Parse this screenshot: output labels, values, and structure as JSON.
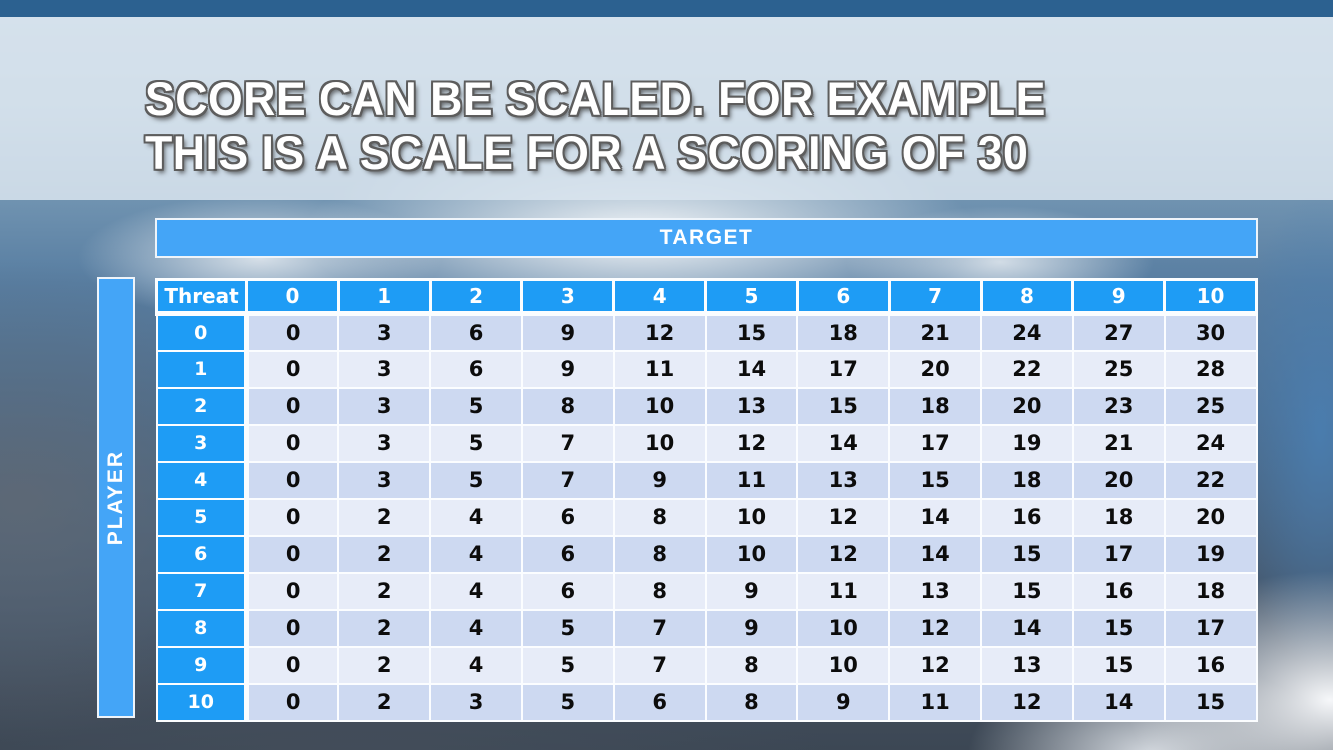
{
  "slide": {
    "title_line1": "SCORE CAN BE SCALED. FOR EXAMPLE",
    "title_line2": "THIS IS A SCALE FOR A SCORING OF 30"
  },
  "matrix": {
    "target_label": "TARGET",
    "player_label": "PLAYER",
    "corner_label": "Threat",
    "col_headers": [
      "0",
      "1",
      "2",
      "3",
      "4",
      "5",
      "6",
      "7",
      "8",
      "9",
      "10"
    ],
    "row_headers": [
      "0",
      "1",
      "2",
      "3",
      "4",
      "5",
      "6",
      "7",
      "8",
      "9",
      "10"
    ],
    "values": [
      [
        0,
        3,
        6,
        9,
        12,
        15,
        18,
        21,
        24,
        27,
        30
      ],
      [
        0,
        3,
        6,
        9,
        11,
        14,
        17,
        20,
        22,
        25,
        28
      ],
      [
        0,
        3,
        5,
        8,
        10,
        13,
        15,
        18,
        20,
        23,
        25
      ],
      [
        0,
        3,
        5,
        7,
        10,
        12,
        14,
        17,
        19,
        21,
        24
      ],
      [
        0,
        3,
        5,
        7,
        9,
        11,
        13,
        15,
        18,
        20,
        22
      ],
      [
        0,
        2,
        4,
        6,
        8,
        10,
        12,
        14,
        16,
        18,
        20
      ],
      [
        0,
        2,
        4,
        6,
        8,
        10,
        12,
        14,
        15,
        17,
        19
      ],
      [
        0,
        2,
        4,
        6,
        8,
        9,
        11,
        13,
        15,
        16,
        18
      ],
      [
        0,
        2,
        4,
        5,
        7,
        9,
        10,
        12,
        14,
        15,
        17
      ],
      [
        0,
        2,
        4,
        5,
        7,
        8,
        10,
        12,
        13,
        15,
        16
      ],
      [
        0,
        2,
        3,
        5,
        6,
        8,
        9,
        11,
        12,
        14,
        15
      ]
    ]
  },
  "colors": {
    "top_strip": "#2c6190",
    "bar_blue": "#44a5f7",
    "header_blue": "#1e9cf5",
    "row_dark": "#cdd9f1",
    "row_light": "#e7ecf8",
    "title_text": "#ffffff",
    "title_outline": "#5d5d5d"
  }
}
